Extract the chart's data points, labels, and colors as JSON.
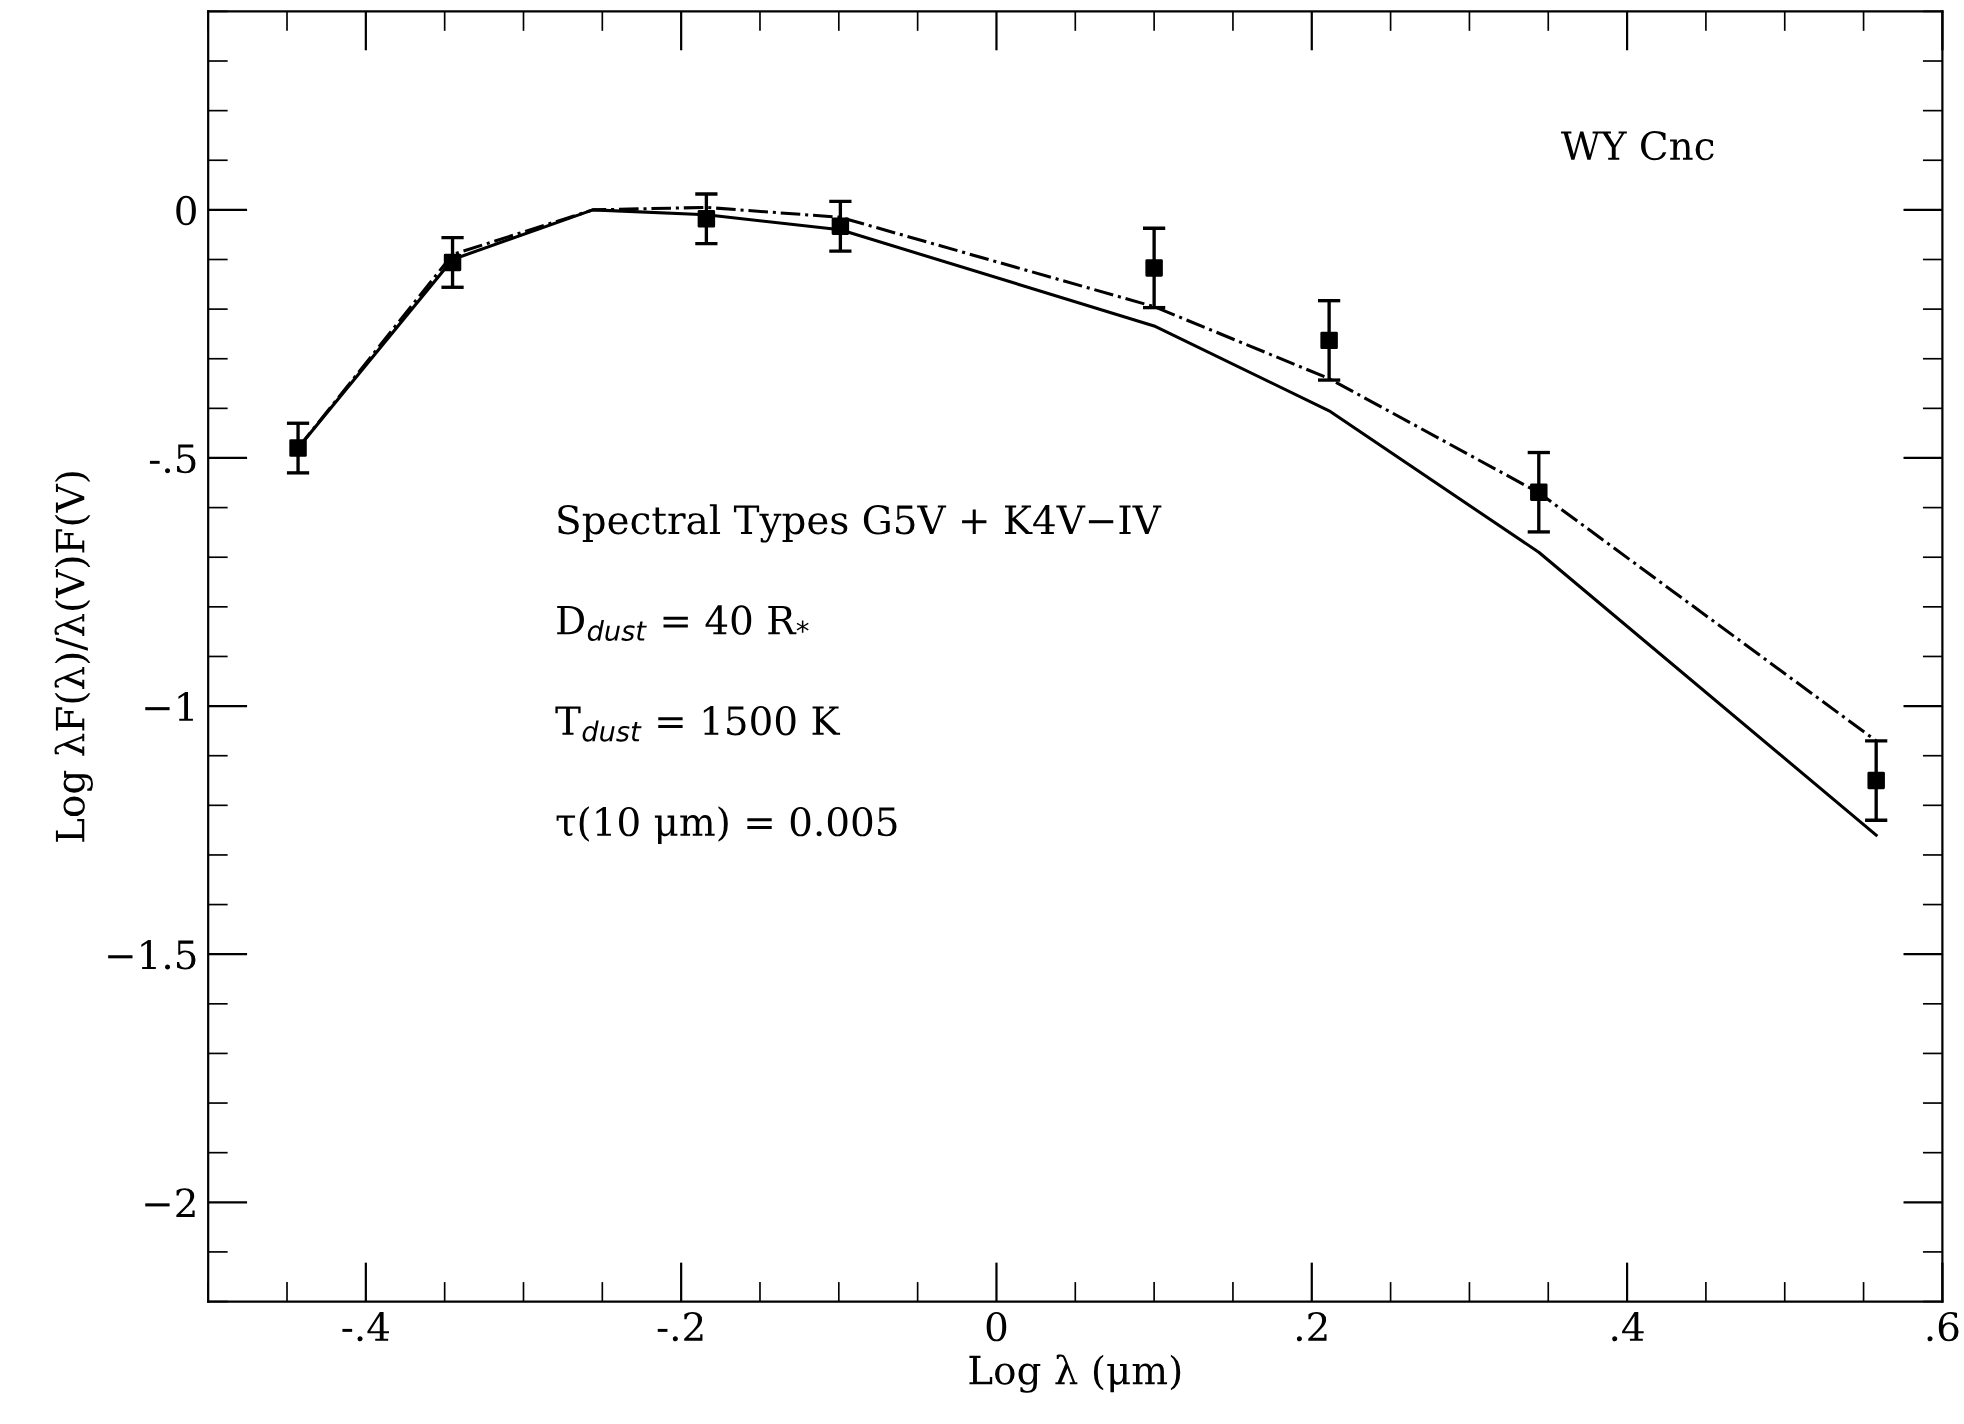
{
  "chart_data": {
    "type": "scatter",
    "xlabel": "Log λ (μm)",
    "ylabel": "Log λF(λ)/λ(V)F(V)",
    "xlim": [
      -0.5,
      0.6
    ],
    "ylim": [
      -2.2,
      0.4
    ],
    "xticks": [
      {
        "value": -0.4,
        "label": "-.4"
      },
      {
        "value": -0.2,
        "label": "-.2"
      },
      0,
      {
        "value": 0.2,
        "label": ".2"
      },
      {
        "value": 0.4,
        "label": ".4"
      },
      {
        "value": 0.6,
        "label": ".6"
      }
    ],
    "yticks": [
      {
        "value": -2,
        "label": "−2"
      },
      {
        "value": -1.5,
        "label": "−1.5"
      },
      {
        "value": -1,
        "label": "−1"
      },
      {
        "value": -0.5,
        "label": "-.5"
      },
      0
    ],
    "grid": false,
    "legend": false,
    "series": [
      {
        "color": "#000000",
        "marker": "square",
        "x": [
          -0.443,
          -0.345,
          -0.184,
          -0.099,
          0.1,
          0.211,
          0.344,
          0.558
        ],
        "values": [
          -0.48,
          -0.106,
          -0.018,
          -0.033,
          -0.117,
          -0.263,
          -0.569,
          -1.15
        ],
        "errors": [
          0.05,
          0.05,
          0.05,
          0.05,
          0.08,
          0.08,
          0.08,
          0.08
        ]
      },
      {
        "type": "line",
        "color": "#000000",
        "line_style": "solid",
        "marker": "none",
        "x": [
          -0.443,
          -0.345,
          -0.256,
          -0.184,
          -0.099,
          0.1,
          0.211,
          0.344,
          0.558
        ],
        "values": [
          -0.48,
          -0.1,
          0,
          -0.01,
          -0.04,
          -0.234,
          -0.405,
          -0.69,
          -1.26
        ]
      },
      {
        "type": "line",
        "color": "#000000",
        "line_style": "dashdot",
        "marker": "none",
        "x": [
          -0.443,
          -0.345,
          -0.256,
          -0.184,
          -0.099,
          0.1,
          0.211,
          0.344,
          0.558
        ],
        "values": [
          -0.48,
          -0.09,
          0,
          0.005,
          -0.015,
          -0.195,
          -0.34,
          -0.57,
          -1.07
        ]
      }
    ],
    "annotations": [
      "WY Cnc",
      "Spectral Types G5V + K4V−IV",
      "D$_{dust}$ = 40 R$_{*}$",
      "T$_{dust}$ = 1500 K",
      "τ(10 μm) = 0.005"
    ]
  }
}
